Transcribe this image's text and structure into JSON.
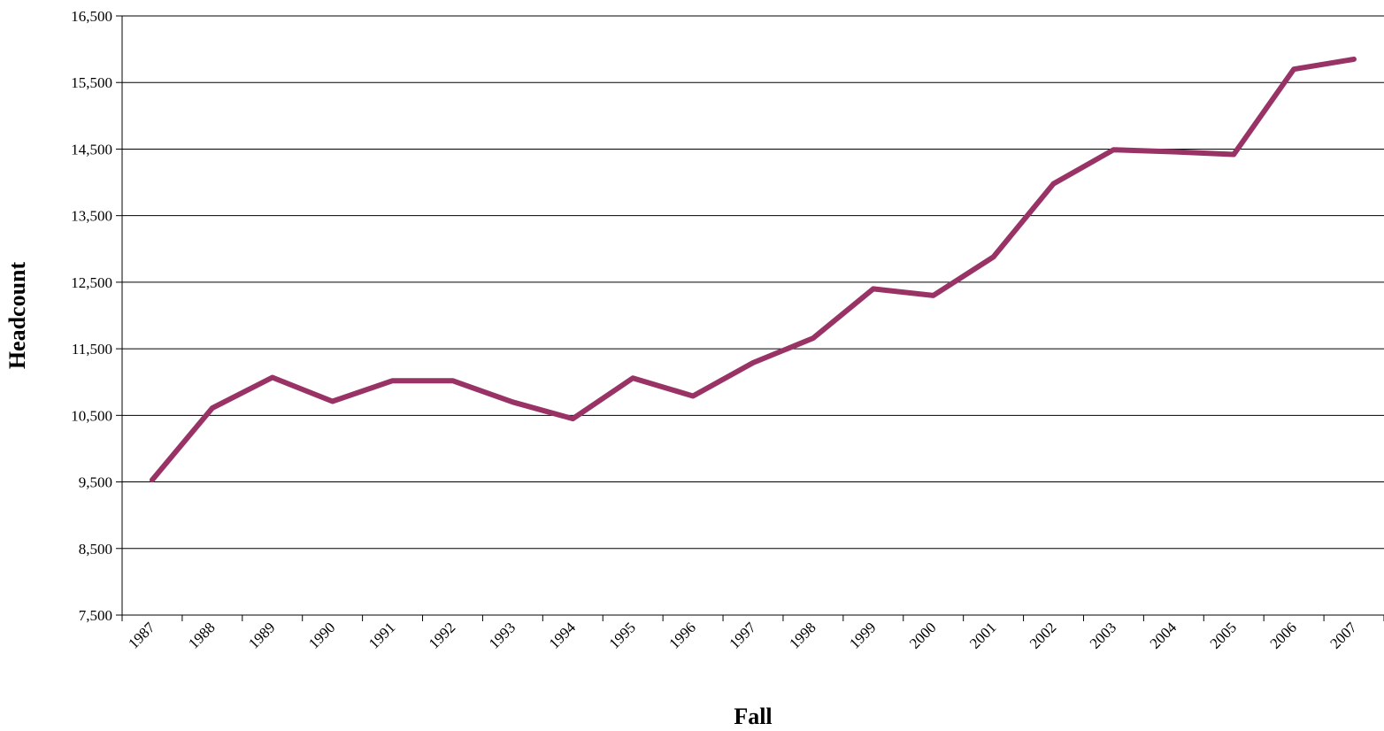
{
  "chart_data": {
    "type": "line",
    "title": "",
    "xlabel": "Fall",
    "ylabel": "Headcount",
    "categories": [
      "1987",
      "1988",
      "1989",
      "1990",
      "1991",
      "1992",
      "1993",
      "1994",
      "1995",
      "1996",
      "1997",
      "1998",
      "1999",
      "2000",
      "2001",
      "2002",
      "2003",
      "2004",
      "2005",
      "2006",
      "2007"
    ],
    "series": [
      {
        "color": "#993366",
        "values": [
          9530,
          10610,
          11070,
          10710,
          11020,
          11020,
          10700,
          10450,
          11060,
          10790,
          11290,
          11660,
          12400,
          12300,
          12880,
          13980,
          14490,
          14460,
          14420,
          15700,
          15850
        ]
      }
    ],
    "ylim": [
      7500,
      16500
    ],
    "yticks": [
      7500,
      8500,
      9500,
      10500,
      11500,
      12500,
      13500,
      14500,
      15500,
      16500
    ],
    "ytick_labels": [
      "7,500",
      "8,500",
      "9,500",
      "10,500",
      "11,500",
      "12,500",
      "13,500",
      "14,500",
      "15,500",
      "16,500"
    ],
    "grid": "horizontal",
    "legend": "none"
  }
}
